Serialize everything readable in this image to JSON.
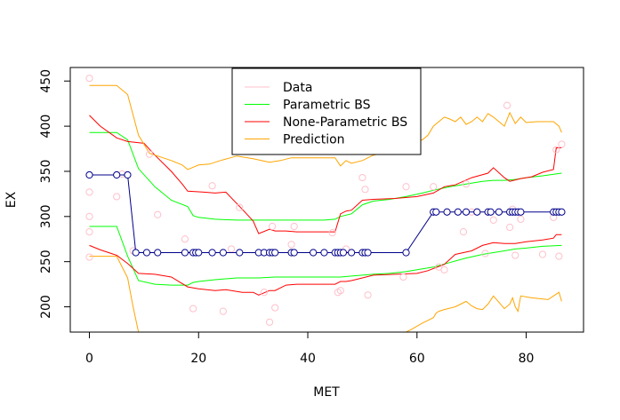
{
  "chart_data": {
    "type": "scatter",
    "xlabel": "MET",
    "ylabel": "EX",
    "xlim": [
      -3.5,
      90.5
    ],
    "ylim": [
      172,
      465
    ],
    "x_ticks": [
      0,
      20,
      40,
      60,
      80
    ],
    "y_ticks": [
      200,
      250,
      300,
      350,
      400,
      450
    ],
    "x_tick_labels": [
      "0",
      "20",
      "40",
      "60",
      "80"
    ],
    "y_tick_labels": [
      "200",
      "250",
      "300",
      "350",
      "400",
      "450"
    ],
    "grid": false,
    "legend_position": "top-center",
    "legend": [
      {
        "label": "Data",
        "color": "#ffc0cb"
      },
      {
        "label": "Parametric BS",
        "color": "#00ff00"
      },
      {
        "label": "None-Parametric BS",
        "color": "#ff0000"
      },
      {
        "label": "Prediction",
        "color": "#ffa500"
      }
    ],
    "data_points": {
      "color": "#ffc0cb",
      "x": [
        0,
        0,
        0,
        0,
        0,
        5,
        6,
        8,
        11,
        12.5,
        17.5,
        19,
        22.5,
        24.5,
        26,
        27.5,
        32,
        33,
        33.5,
        34,
        37,
        37.5,
        44.5,
        45.5,
        46,
        47,
        50,
        50.5,
        51,
        57.5,
        58,
        63,
        64,
        65,
        68.5,
        69,
        70,
        72.5,
        74,
        76.5,
        77,
        77.5,
        78,
        79,
        83,
        85,
        85.5,
        86,
        86.5
      ],
      "y": [
        453,
        327,
        300,
        283,
        255,
        322,
        347,
        262,
        369,
        302,
        275,
        198,
        334,
        195,
        264,
        310,
        216,
        183,
        289,
        199,
        269,
        289,
        282,
        216,
        218,
        264,
        343,
        330,
        213,
        233,
        333,
        333,
        244,
        241,
        283,
        336,
        305,
        259,
        296,
        423,
        288,
        308,
        257,
        297,
        258,
        299,
        374,
        256,
        380
      ]
    },
    "fitted_points": {
      "color": "#00008b",
      "x": [
        0,
        5,
        7,
        8.5,
        10.5,
        12.5,
        17.5,
        19,
        19.5,
        20,
        22.5,
        24.5,
        27.5,
        31,
        32,
        33,
        33.5,
        34,
        37,
        37.5,
        41,
        43,
        45,
        45.5,
        46,
        46.5,
        48,
        50,
        50.5,
        51,
        58,
        63,
        63.5,
        65.5,
        67.5,
        69,
        71,
        73,
        73.5,
        75,
        77,
        77.5,
        78,
        78.5,
        79,
        85,
        85.5,
        86,
        86.5
      ],
      "y": [
        346,
        346,
        346,
        260,
        260,
        260,
        260,
        260,
        260,
        260,
        260,
        260,
        260,
        260,
        260,
        260,
        260,
        260,
        260,
        260,
        260,
        260,
        260,
        260,
        260,
        260,
        260,
        260,
        260,
        260,
        260,
        305,
        305,
        305,
        305,
        305,
        305,
        305,
        305,
        305,
        305,
        305,
        305,
        305,
        305,
        305,
        305,
        305,
        305
      ]
    },
    "series": [
      {
        "name": "Parametric BS",
        "color": "#00ff00",
        "band": "upper",
        "x": [
          0,
          5,
          7,
          9,
          12,
          15,
          18,
          19,
          20,
          23,
          27,
          31,
          34,
          37,
          40,
          43,
          45,
          46,
          48,
          50,
          52,
          55,
          58,
          61,
          63,
          66,
          69,
          72,
          74,
          76,
          78,
          80,
          83,
          86.5
        ],
        "y": [
          393,
          393,
          385,
          353,
          333,
          318,
          311,
          301,
          299,
          297,
          296,
          296,
          296,
          296,
          296,
          296,
          297,
          300,
          303,
          313,
          317,
          319,
          322,
          326,
          329,
          333,
          336,
          339,
          340,
          340,
          341,
          343,
          345,
          348
        ]
      },
      {
        "name": "Parametric BS",
        "color": "#00ff00",
        "band": "lower",
        "x": [
          0,
          5,
          7,
          9,
          12,
          15,
          18,
          19,
          20,
          23,
          27,
          31,
          34,
          37,
          40,
          43,
          45,
          46,
          48,
          50,
          52,
          55,
          58,
          61,
          63,
          66,
          69,
          72,
          74,
          76,
          78,
          80,
          83,
          86.5
        ],
        "y": [
          289,
          289,
          256,
          229,
          225,
          224,
          224,
          227,
          228,
          230,
          232,
          232,
          233,
          233,
          233,
          233,
          233,
          233,
          234,
          235,
          236,
          237,
          239,
          242,
          244,
          249,
          254,
          258,
          260,
          262,
          264,
          265,
          267,
          268
        ]
      },
      {
        "name": "None-Parametric BS",
        "color": "#ff0000",
        "band": "upper",
        "x": [
          0,
          2,
          5,
          7,
          10,
          12,
          15,
          17,
          18,
          21,
          23,
          25,
          28,
          30,
          31,
          33,
          34,
          36,
          38,
          40,
          43,
          45,
          46,
          47,
          48,
          50,
          52,
          56,
          60,
          63,
          65,
          67,
          70,
          73,
          74,
          76,
          77,
          79,
          81,
          83,
          85,
          85.5,
          86.5
        ],
        "y": [
          412,
          400,
          387,
          383,
          381,
          368,
          350,
          336,
          328,
          327,
          326,
          327,
          308,
          295,
          281,
          286,
          284,
          284,
          283,
          283,
          283,
          283,
          303,
          306,
          307,
          318,
          319,
          320,
          322,
          326,
          333,
          335,
          343,
          348,
          354,
          343,
          339,
          342,
          344,
          349,
          352,
          376,
          376
        ]
      },
      {
        "name": "None-Parametric BS",
        "color": "#ff0000",
        "band": "lower",
        "x": [
          0,
          2,
          5,
          7,
          9,
          12,
          15,
          18,
          20,
          23,
          25,
          28,
          30,
          31,
          33,
          34,
          36,
          38,
          40,
          43,
          45,
          46,
          47,
          48,
          50,
          52,
          56,
          60,
          62,
          65,
          67,
          70,
          72,
          74,
          76,
          78,
          80,
          83,
          85,
          85.5,
          86.5
        ],
        "y": [
          268,
          263,
          257,
          248,
          237,
          236,
          233,
          222,
          220,
          218,
          219,
          216,
          216,
          213,
          218,
          218,
          224,
          225,
          225,
          225,
          225,
          228,
          228,
          229,
          232,
          235,
          236,
          237,
          240,
          247,
          258,
          262,
          268,
          271,
          270,
          270,
          272,
          274,
          276,
          280,
          280
        ]
      },
      {
        "name": "Prediction",
        "color": "#ffa500",
        "band": "upper",
        "x": [
          0,
          5,
          7,
          9,
          11,
          13,
          15,
          17,
          18,
          20,
          22,
          24,
          27,
          30,
          33,
          35,
          37,
          40,
          43,
          45,
          46,
          47,
          48,
          50,
          52,
          55,
          58,
          61,
          62,
          63,
          64,
          65,
          66,
          67,
          68,
          69,
          70,
          71,
          72,
          73,
          74,
          75,
          76,
          77,
          78,
          79,
          80,
          82,
          84,
          85,
          86,
          86.5
        ],
        "y": [
          445,
          445,
          435,
          390,
          370,
          366,
          362,
          357,
          352,
          357,
          358,
          362,
          367,
          364,
          360,
          362,
          365,
          365,
          365,
          365,
          356,
          362,
          359,
          362,
          368,
          372,
          378,
          385,
          390,
          400,
          405,
          410,
          408,
          405,
          410,
          402,
          405,
          410,
          405,
          414,
          410,
          405,
          400,
          415,
          403,
          410,
          404,
          405,
          405,
          405,
          400,
          393
        ]
      },
      {
        "name": "Prediction",
        "color": "#ffa500",
        "band": "lower",
        "x": [
          0,
          5,
          7,
          8,
          9,
          58,
          59,
          61,
          62,
          63,
          63.5,
          64,
          65,
          67,
          68,
          69,
          70,
          71,
          72,
          73,
          74,
          75,
          76,
          77,
          77.5,
          78,
          78.5,
          79,
          81,
          84,
          85,
          86,
          86.5
        ],
        "y": [
          256,
          256,
          232,
          200,
          172,
          172,
          175,
          182,
          185,
          188,
          193,
          195,
          197,
          200,
          203,
          206,
          201,
          198,
          197,
          203,
          212,
          205,
          198,
          203,
          210,
          200,
          195,
          212,
          210,
          208,
          212,
          216,
          206
        ]
      }
    ]
  }
}
